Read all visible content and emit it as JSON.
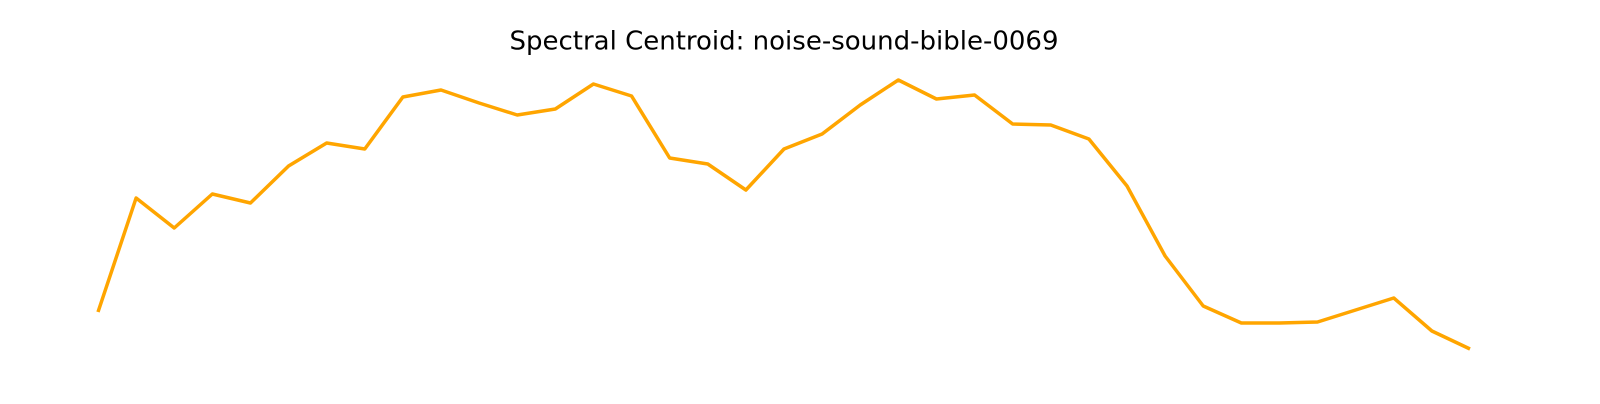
{
  "chart_data": {
    "type": "line",
    "title": "Spectral Centroid: noise-sound-bible-0069",
    "series": [
      {
        "color": "#ffa500",
        "values": [
          53,
          167,
          137,
          171,
          162,
          199,
          222,
          216,
          268,
          275,
          262,
          250,
          256,
          281,
          269,
          207,
          201,
          175,
          216,
          231,
          260,
          285,
          266,
          270,
          241,
          240,
          226,
          179,
          109,
          59,
          42,
          42,
          43,
          55,
          67,
          34,
          16
        ]
      }
    ],
    "ylim": [
      0,
      300
    ]
  }
}
